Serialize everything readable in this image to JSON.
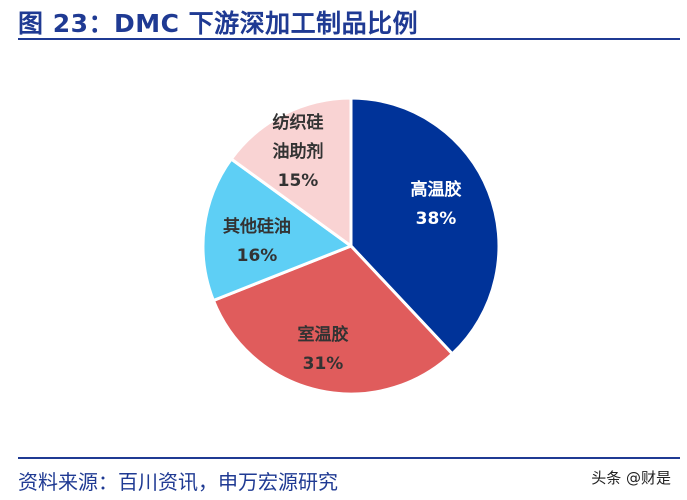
{
  "title": "图 23：DMC 下游深加工制品比例",
  "source": "资料来源：百川资讯，申万宏源研究",
  "watermark": "头条 @财是",
  "chart_data": {
    "type": "pie",
    "title": "图 23：DMC 下游深加工制品比例",
    "slices": [
      {
        "name": "高温胶",
        "value": 38,
        "label": "38%",
        "color": "#003399",
        "text_color": "#ffffff",
        "name_lines": [
          "高温胶"
        ]
      },
      {
        "name": "室温胶",
        "value": 31,
        "label": "31%",
        "color": "#e05c5c",
        "text_color": "#333333",
        "name_lines": [
          "室温胶"
        ]
      },
      {
        "name": "其他硅油",
        "value": 16,
        "label": "16%",
        "color": "#5ecff5",
        "text_color": "#333333",
        "name_lines": [
          "其他硅油"
        ]
      },
      {
        "name": "纺织硅油助剂",
        "value": 15,
        "label": "15%",
        "color": "#f9d3d3",
        "text_color": "#333333",
        "name_lines": [
          "纺织硅",
          "油助剂"
        ]
      }
    ],
    "legend": "none"
  }
}
